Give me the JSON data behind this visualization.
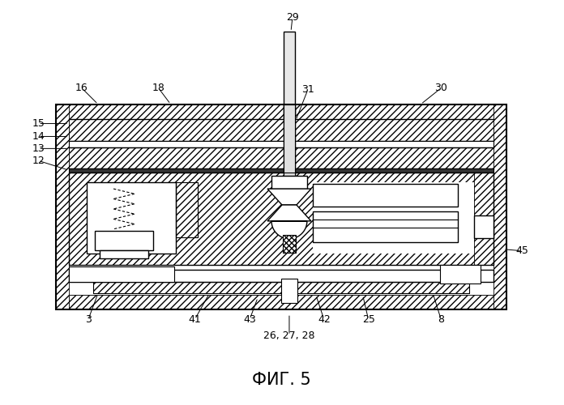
{
  "title": "ФИГ. 5",
  "title_fontsize": 15,
  "bg": "#ffffff",
  "lc": "#000000",
  "fig_w": 6.96,
  "fig_h": 5.0,
  "dpi": 100
}
